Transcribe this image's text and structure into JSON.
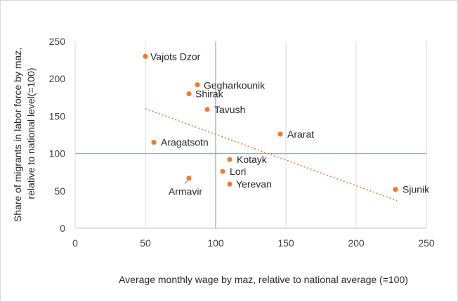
{
  "chart_data": {
    "type": "scatter",
    "title": "",
    "xlabel": "Average monthly wage by maz, relative to national average (=100)",
    "ylabel_lines": [
      "Share of migrants in labor force by maz,",
      "relative to national level(=100)"
    ],
    "xlim": [
      0,
      250
    ],
    "ylim": [
      0,
      250
    ],
    "x_ticks": [
      0,
      50,
      100,
      150,
      200,
      250
    ],
    "y_ticks": [
      0,
      50,
      100,
      150,
      200,
      250
    ],
    "grid": true,
    "reference_lines": {
      "x": 100,
      "y": 100
    },
    "trendline": {
      "type": "linear",
      "from": [
        50,
        160
      ],
      "to": [
        229,
        37
      ]
    },
    "points": [
      {
        "name": "Vajots Dzor",
        "x": 50,
        "y": 230
      },
      {
        "name": "Gegharkounik",
        "x": 87,
        "y": 192
      },
      {
        "name": "Shirak",
        "x": 81,
        "y": 180
      },
      {
        "name": "Tavush",
        "x": 94,
        "y": 159
      },
      {
        "name": "Ararat",
        "x": 146,
        "y": 126
      },
      {
        "name": "Aragatsotn",
        "x": 56,
        "y": 115
      },
      {
        "name": "Kotayk",
        "x": 110,
        "y": 92
      },
      {
        "name": "Lori",
        "x": 105,
        "y": 76
      },
      {
        "name": "Armavir",
        "x": 81,
        "y": 67
      },
      {
        "name": "Yerevan",
        "x": 110,
        "y": 59
      },
      {
        "name": "Sjunik",
        "x": 228,
        "y": 52
      }
    ],
    "colors": {
      "point": "#ED7D31",
      "trendline": "#ED7D31",
      "grid": "#d9d9d9",
      "reference": "#8EA9DB"
    }
  }
}
